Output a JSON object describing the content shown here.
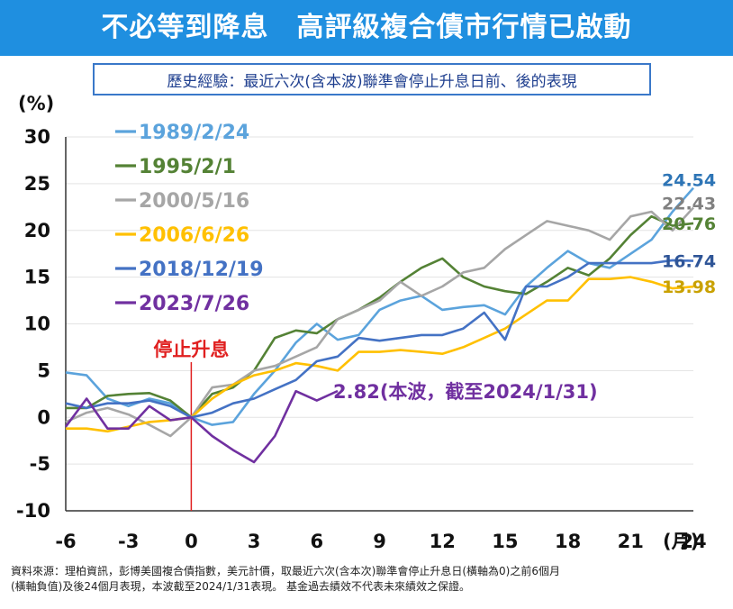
{
  "header": {
    "title": "不必等到降息　高評級複合債市行情已啟動",
    "subtitle": "歷史經驗：最近六次(含本波)聯準會停止升息日前、後的表現"
  },
  "chart_data": {
    "type": "line",
    "ylabel": "(%)",
    "xlabel": "(月)",
    "xlim": [
      -6,
      24
    ],
    "ylim": [
      -10,
      30
    ],
    "x_ticks": [
      -6,
      -3,
      0,
      3,
      6,
      9,
      12,
      15,
      18,
      21,
      24
    ],
    "x_tick_labels": [
      "-6",
      "-3",
      "0",
      "3",
      "6",
      "9",
      "12",
      "15",
      "18",
      "21",
      "24"
    ],
    "y_ticks": [
      -10,
      -5,
      0,
      5,
      10,
      15,
      20,
      25,
      30
    ],
    "y_tick_labels": [
      "-10",
      "-5",
      "0",
      "5",
      "10",
      "15",
      "20",
      "25",
      "30"
    ],
    "grid": true,
    "x": [
      -6,
      -5,
      -4,
      -3,
      -2,
      -1,
      0,
      1,
      2,
      3,
      4,
      5,
      6,
      7,
      8,
      9,
      10,
      11,
      12,
      13,
      14,
      15,
      16,
      17,
      18,
      19,
      20,
      21,
      22,
      23,
      24
    ],
    "series": [
      {
        "name": "1989/2/24",
        "color": "#5ba3dc",
        "values": [
          4.8,
          4.5,
          2.0,
          1.2,
          2.0,
          1.5,
          0.0,
          -0.8,
          -0.5,
          2.5,
          5.0,
          8.0,
          10.0,
          8.3,
          8.8,
          11.5,
          12.5,
          13.0,
          11.5,
          11.8,
          12.0,
          11.0,
          14.0,
          16.0,
          17.8,
          16.5,
          16.0,
          17.5,
          19.0,
          22.0,
          24.54
        ]
      },
      {
        "name": "1995/2/1",
        "color": "#548235",
        "values": [
          1.0,
          1.0,
          2.3,
          2.5,
          2.6,
          1.8,
          0.0,
          2.5,
          3.2,
          5.0,
          8.5,
          9.3,
          9.0,
          10.5,
          11.5,
          12.8,
          14.5,
          16.0,
          17.0,
          15.0,
          14.0,
          13.5,
          13.2,
          14.5,
          16.0,
          15.2,
          17.0,
          19.5,
          21.5,
          20.5,
          20.76
        ]
      },
      {
        "name": "2000/5/16",
        "color": "#a6a6a6",
        "values": [
          -0.5,
          0.5,
          1.0,
          0.3,
          -0.8,
          -2.0,
          0.0,
          3.2,
          3.5,
          5.0,
          5.5,
          6.5,
          7.5,
          10.5,
          11.5,
          12.5,
          14.5,
          13.0,
          14.0,
          15.5,
          16.0,
          18.0,
          19.5,
          21.0,
          20.5,
          20.0,
          19.0,
          21.5,
          22.0,
          20.0,
          22.43
        ]
      },
      {
        "name": "2006/6/26",
        "color": "#ffc000",
        "values": [
          -1.2,
          -1.2,
          -1.5,
          -1.0,
          -0.5,
          -0.3,
          0.0,
          2.0,
          3.5,
          4.5,
          5.0,
          5.8,
          5.5,
          5.0,
          7.0,
          7.0,
          7.2,
          7.0,
          6.8,
          7.5,
          8.5,
          9.5,
          11.0,
          12.5,
          12.5,
          14.8,
          14.8,
          15.0,
          14.5,
          13.8,
          13.98
        ]
      },
      {
        "name": "2018/12/19",
        "color": "#4472c4",
        "values": [
          1.5,
          1.0,
          1.5,
          1.5,
          1.8,
          1.2,
          0.0,
          0.5,
          1.5,
          2.0,
          3.0,
          4.0,
          6.0,
          6.5,
          8.5,
          8.2,
          8.5,
          8.8,
          8.8,
          9.5,
          11.2,
          8.3,
          14.0,
          14.0,
          15.0,
          16.5,
          16.5,
          16.5,
          16.5,
          16.8,
          16.74
        ]
      },
      {
        "name": "2023/7/26",
        "color": "#7030a0",
        "values": [
          -1.0,
          2.0,
          -1.2,
          -1.2,
          1.2,
          -0.3,
          0.0,
          -2.0,
          -3.5,
          -4.8,
          -2.0,
          2.8,
          1.8,
          2.82,
          null,
          null,
          null,
          null,
          null,
          null,
          null,
          null,
          null,
          null,
          null,
          null,
          null,
          null,
          null,
          null,
          null
        ]
      }
    ],
    "end_labels": [
      {
        "series": "1989/2/24",
        "text": "24.54",
        "color": "#2e75b6"
      },
      {
        "series": "2000/5/16",
        "text": "22.43",
        "color": "#808080"
      },
      {
        "series": "1995/2/1",
        "text": "20.76",
        "color": "#548235"
      },
      {
        "series": "2018/12/19",
        "text": "16.74",
        "color": "#2f5597"
      },
      {
        "series": "2006/6/26",
        "text": "13.98",
        "color": "#c9a100"
      }
    ],
    "annotations": {
      "current": {
        "text": "2.82(本波，截至2024/1/31)",
        "color": "#7030a0",
        "x": 7,
        "y": 2.82
      },
      "stop_line": {
        "text": "停止升息",
        "color": "#e02020",
        "x": 0
      }
    },
    "legend_placement": "top-left"
  },
  "footer": {
    "line1": "資料來源：理柏資訊，彭博美國複合債指數，美元計價，取最近六次(含本次)聯準會停止升息日(橫軸為0)之前6個月",
    "line2": "(橫軸負值)及後24個月表現，本波截至2024/1/31表現。 基金過去績效不代表未來績效之保證。"
  }
}
